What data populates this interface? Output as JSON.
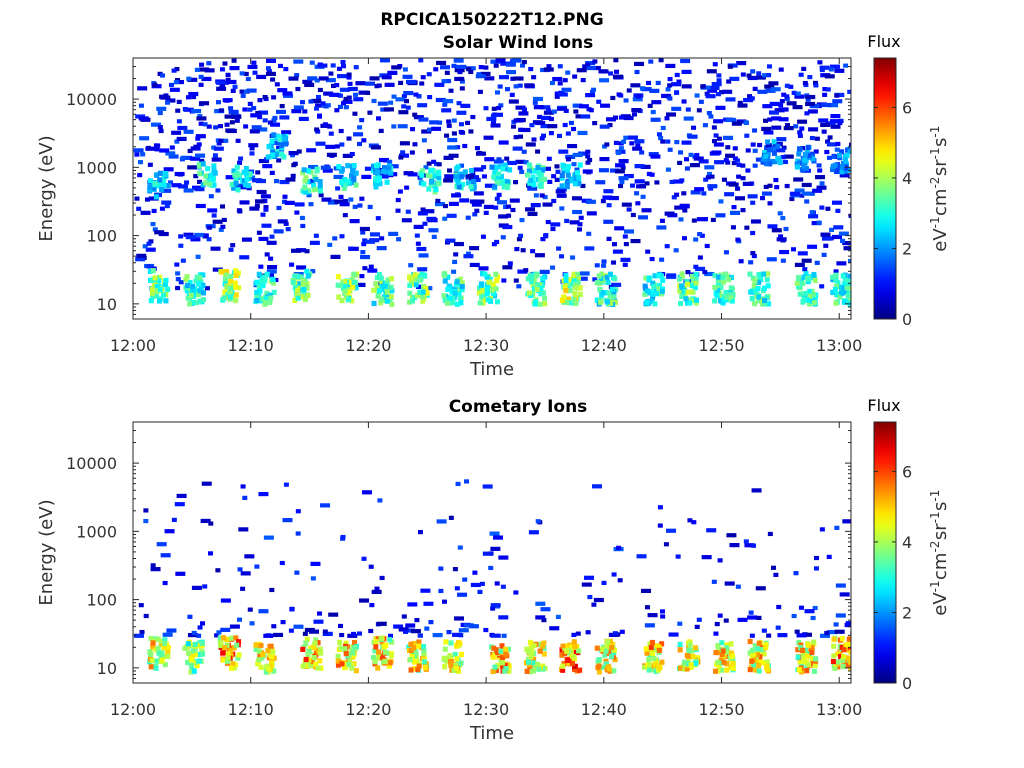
{
  "figure_title": "RPCICA150222T12.PNG",
  "chart_data": [
    {
      "type": "heatmap",
      "title": "Solar Wind Ions",
      "xlabel": "Time",
      "ylabel": "Energy (eV)",
      "x_ticks": [
        "12:00",
        "12:10",
        "12:20",
        "12:30",
        "12:40",
        "12:50",
        "13:00"
      ],
      "xlim": [
        "12:00",
        "13:01"
      ],
      "y_scale": "log",
      "y_ticks": [
        10,
        100,
        1000,
        10000
      ],
      "y_tick_labels": [
        "10",
        "100",
        "1000",
        "10000"
      ],
      "ylim": [
        6,
        40000
      ],
      "colorbar": {
        "title": "Flux",
        "label_parts": [
          "eV",
          "-1",
          "cm",
          "-2",
          "sr",
          "-1",
          "s",
          "-1"
        ],
        "ticks": [
          0,
          2,
          4,
          6
        ],
        "range": [
          0,
          7.4
        ],
        "colormap": "jet"
      },
      "bursts": [
        {
          "time": "12:02",
          "energy_eV": 600,
          "flux": 3.2
        },
        {
          "time": "12:06",
          "energy_eV": 850,
          "flux": 3.5
        },
        {
          "time": "12:09",
          "energy_eV": 750,
          "flux": 3.3
        },
        {
          "time": "12:12",
          "energy_eV": 2200,
          "flux": 3.0
        },
        {
          "time": "12:15",
          "energy_eV": 700,
          "flux": 3.8
        },
        {
          "time": "12:18",
          "energy_eV": 800,
          "flux": 3.4
        },
        {
          "time": "12:21",
          "energy_eV": 800,
          "flux": 3.0
        },
        {
          "time": "12:25",
          "energy_eV": 700,
          "flux": 3.6
        },
        {
          "time": "12:28",
          "energy_eV": 750,
          "flux": 3.2
        },
        {
          "time": "12:31",
          "energy_eV": 800,
          "flux": 3.3
        },
        {
          "time": "12:34",
          "energy_eV": 800,
          "flux": 3.5
        },
        {
          "time": "12:37",
          "energy_eV": 800,
          "flux": 3.2
        },
        {
          "time": "12:54",
          "energy_eV": 1800,
          "flux": 2.6
        },
        {
          "time": "12:57",
          "energy_eV": 1500,
          "flux": 2.4
        },
        {
          "time": "13:00",
          "energy_eV": 1400,
          "flux": 2.4
        }
      ],
      "low_energy_bursts": [
        {
          "time": "12:02",
          "energy_eV": 20,
          "flux": 4.4
        },
        {
          "time": "12:05",
          "energy_eV": 18,
          "flux": 3.8
        },
        {
          "time": "12:08",
          "energy_eV": 20,
          "flux": 4.8
        },
        {
          "time": "12:11",
          "energy_eV": 18,
          "flux": 3.8
        },
        {
          "time": "12:14",
          "energy_eV": 20,
          "flux": 4.2
        },
        {
          "time": "12:18",
          "energy_eV": 18,
          "flux": 4.4
        },
        {
          "time": "12:21",
          "energy_eV": 18,
          "flux": 4.0
        },
        {
          "time": "12:24",
          "energy_eV": 18,
          "flux": 4.4
        },
        {
          "time": "12:27",
          "energy_eV": 18,
          "flux": 3.9
        },
        {
          "time": "12:30",
          "energy_eV": 18,
          "flux": 4.4
        },
        {
          "time": "12:34",
          "energy_eV": 18,
          "flux": 4.0
        },
        {
          "time": "12:37",
          "energy_eV": 18,
          "flux": 4.8
        },
        {
          "time": "12:40",
          "energy_eV": 18,
          "flux": 3.9
        },
        {
          "time": "12:44",
          "energy_eV": 18,
          "flux": 3.6
        },
        {
          "time": "12:47",
          "energy_eV": 18,
          "flux": 4.2
        },
        {
          "time": "12:50",
          "energy_eV": 18,
          "flux": 3.8
        },
        {
          "time": "12:53",
          "energy_eV": 18,
          "flux": 4.0
        },
        {
          "time": "12:57",
          "energy_eV": 18,
          "flux": 3.8
        },
        {
          "time": "13:00",
          "energy_eV": 18,
          "flux": 3.8
        }
      ]
    },
    {
      "type": "heatmap",
      "title": "Cometary Ions",
      "xlabel": "Time",
      "ylabel": "Energy (eV)",
      "x_ticks": [
        "12:00",
        "12:10",
        "12:20",
        "12:30",
        "12:40",
        "12:50",
        "13:00"
      ],
      "xlim": [
        "12:00",
        "13:01"
      ],
      "y_scale": "log",
      "y_ticks": [
        10,
        100,
        1000,
        10000
      ],
      "y_tick_labels": [
        "10",
        "100",
        "1000",
        "10000"
      ],
      "ylim": [
        6,
        40000
      ],
      "colorbar": {
        "title": "Flux",
        "label_parts": [
          "eV",
          "-1",
          "cm",
          "-2",
          "sr",
          "-1",
          "s",
          "-1"
        ],
        "ticks": [
          0,
          2,
          4,
          6
        ],
        "range": [
          0,
          7.4
        ],
        "colormap": "jet"
      },
      "low_energy_bursts": [
        {
          "time": "12:02",
          "energy_eV": 18,
          "flux": 5.6
        },
        {
          "time": "12:05",
          "energy_eV": 16,
          "flux": 4.6
        },
        {
          "time": "12:08",
          "energy_eV": 18,
          "flux": 6.4
        },
        {
          "time": "12:11",
          "energy_eV": 15,
          "flux": 5.4
        },
        {
          "time": "12:15",
          "energy_eV": 18,
          "flux": 6.2
        },
        {
          "time": "12:18",
          "energy_eV": 16,
          "flux": 5.8
        },
        {
          "time": "12:21",
          "energy_eV": 18,
          "flux": 5.8
        },
        {
          "time": "12:24",
          "energy_eV": 16,
          "flux": 5.6
        },
        {
          "time": "12:27",
          "energy_eV": 16,
          "flux": 5.4
        },
        {
          "time": "12:31",
          "energy_eV": 16,
          "flux": 6.0
        },
        {
          "time": "12:34",
          "energy_eV": 16,
          "flux": 5.6
        },
        {
          "time": "12:37",
          "energy_eV": 16,
          "flux": 6.6
        },
        {
          "time": "12:40",
          "energy_eV": 16,
          "flux": 5.6
        },
        {
          "time": "12:44",
          "energy_eV": 16,
          "flux": 5.8
        },
        {
          "time": "12:47",
          "energy_eV": 16,
          "flux": 5.2
        },
        {
          "time": "12:50",
          "energy_eV": 16,
          "flux": 5.6
        },
        {
          "time": "12:53",
          "energy_eV": 16,
          "flux": 5.8
        },
        {
          "time": "12:57",
          "energy_eV": 16,
          "flux": 5.6
        },
        {
          "time": "13:00",
          "energy_eV": 18,
          "flux": 6.2
        }
      ]
    }
  ]
}
